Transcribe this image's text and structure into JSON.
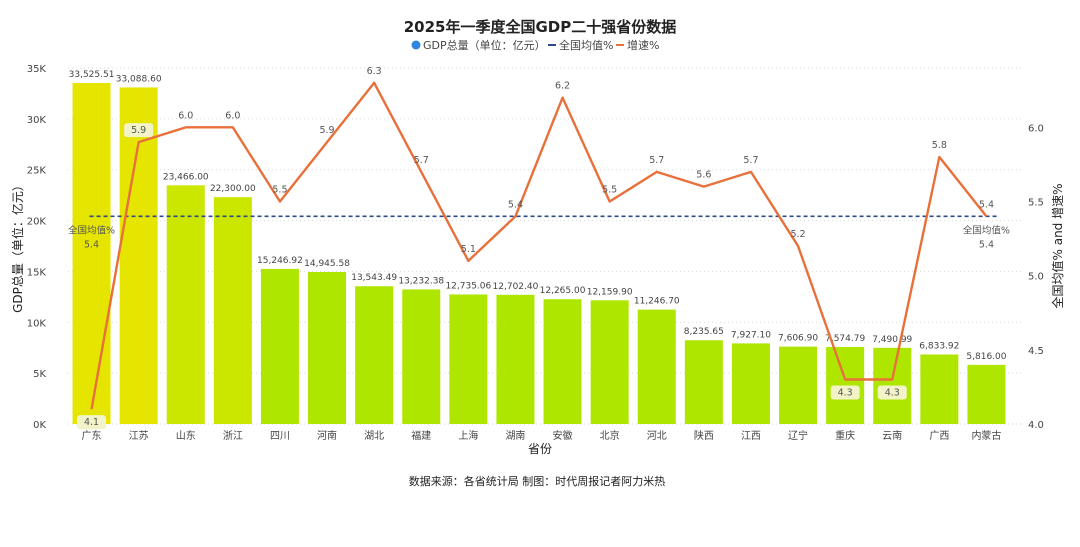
{
  "chart_data": {
    "type": "bar",
    "title": "2025年一季度全国GDP二十强省份数据",
    "source": "数据来源：各省统计局 制图：时代周报记者阿力米热",
    "xlabel": "省份",
    "ylabel": "GDP总量（单位：亿元）",
    "y2label": "全国均值% and 增速%",
    "ylim": [
      0,
      35000
    ],
    "y_ticks": [
      "0K",
      "5K",
      "10K",
      "15K",
      "20K",
      "25K",
      "30K",
      "35K"
    ],
    "y2lim": [
      4.0,
      6.4
    ],
    "y2_ticks": [
      "4.0",
      "4.5",
      "5.0",
      "5.5",
      "6.0"
    ],
    "legend": [
      "GDP总量（单位：亿元）",
      "全国均值%",
      "增速%"
    ],
    "categories": [
      "广东",
      "江苏",
      "山东",
      "浙江",
      "四川",
      "河南",
      "湖北",
      "福建",
      "上海",
      "湖南",
      "安徽",
      "北京",
      "河北",
      "陕西",
      "江西",
      "辽宁",
      "重庆",
      "云南",
      "广西",
      "内蒙古"
    ],
    "series": [
      {
        "name": "GDP总量（单位：亿元）",
        "type": "bar",
        "values": [
          33525.51,
          33088.6,
          23466.0,
          22300.0,
          15246.92,
          14945.58,
          13543.49,
          13232.38,
          12735.06,
          12702.4,
          12265.0,
          12159.9,
          11246.7,
          8235.65,
          7927.1,
          7606.9,
          7574.79,
          7490.99,
          6833.92,
          5816.0
        ],
        "labels": [
          "33,525.51",
          "33,088.60",
          "23,466.00",
          "22,300.00",
          "15,246.92",
          "14,945.58",
          "13,543.49",
          "13,232.38",
          "12,735.06",
          "12,702.40",
          "12,265.00",
          "12,159.90",
          "11,246.70",
          "8,235.65",
          "7,927.10",
          "7,606.90",
          "7,574.79",
          "7,490.99",
          "6,833.92",
          "5,816.00"
        ]
      },
      {
        "name": "全国均值%",
        "type": "line",
        "value": 5.4,
        "label_left": [
          "全国均值%",
          "5.4"
        ],
        "label_right": [
          "全国均值%",
          "5.4"
        ]
      },
      {
        "name": "增速%",
        "type": "line",
        "values": [
          4.1,
          5.9,
          6.0,
          6.0,
          5.5,
          5.9,
          6.3,
          5.7,
          5.1,
          5.4,
          6.2,
          5.5,
          5.7,
          5.6,
          5.7,
          5.2,
          4.3,
          4.3,
          5.8,
          5.4
        ],
        "labels": [
          "4.1",
          "5.9",
          "6.0",
          "6.0",
          "5.5",
          "5.9",
          "6.3",
          "5.7",
          "5.1",
          "5.4",
          "6.2",
          "5.5",
          "5.7",
          "5.6",
          "5.7",
          "5.2",
          "4.3",
          "4.3",
          "5.8",
          "5.4"
        ]
      }
    ],
    "colors": {
      "bar_high": "#e5e500",
      "bar_mid": "#cbe700",
      "bar_low": "#aee600",
      "avg_line": "#2e4a87",
      "growth_line": "#e8703a",
      "legend_dot": "#2e86de"
    },
    "grid": true,
    "legend_position": "top-center"
  }
}
